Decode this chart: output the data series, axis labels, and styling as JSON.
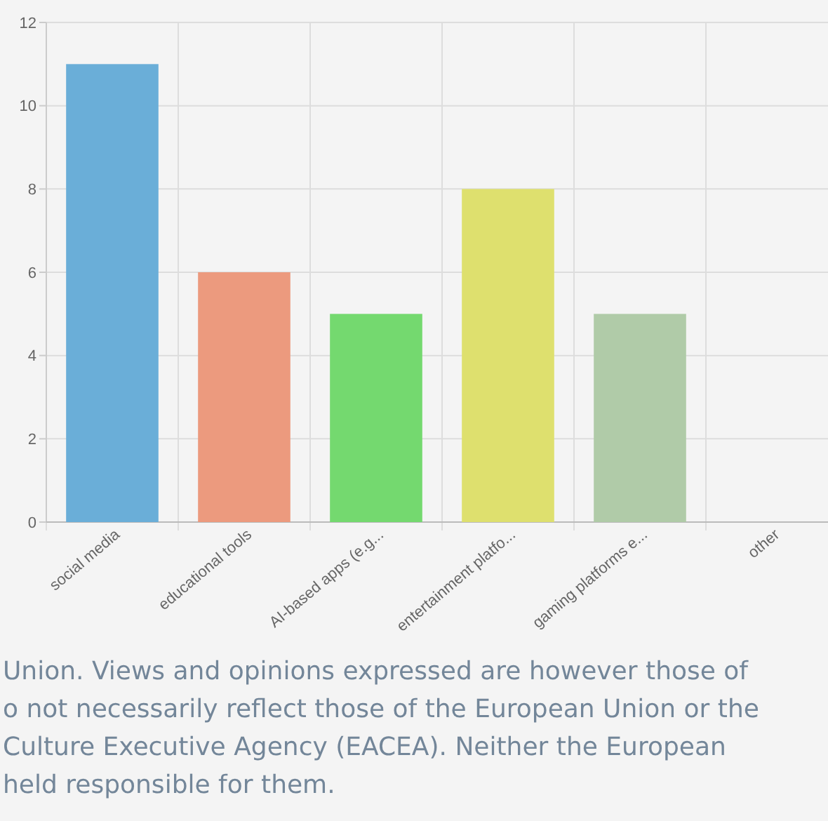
{
  "chart_data": {
    "type": "bar",
    "categories": [
      "social media",
      "educational tools",
      "AI-based apps (e.g...",
      "entertainment platfo...",
      "gaming platforms e...",
      "other"
    ],
    "values": [
      11,
      6,
      5,
      8,
      5,
      0
    ],
    "colors": [
      "#6aaed8",
      "#ec9a7e",
      "#74d96f",
      "#dee06e",
      "#b0cba8",
      "#cccccc"
    ],
    "ylim": [
      0,
      12
    ],
    "yticks": [
      0,
      2,
      4,
      6,
      8,
      10,
      12
    ],
    "grid": true,
    "annotations": [
      "Union. Views and opinions expressed are however those of",
      "o not necessarily reflect those of the European Union or the",
      "Culture Executive Agency (EACEA). Neither the European",
      "held responsible for them."
    ]
  }
}
